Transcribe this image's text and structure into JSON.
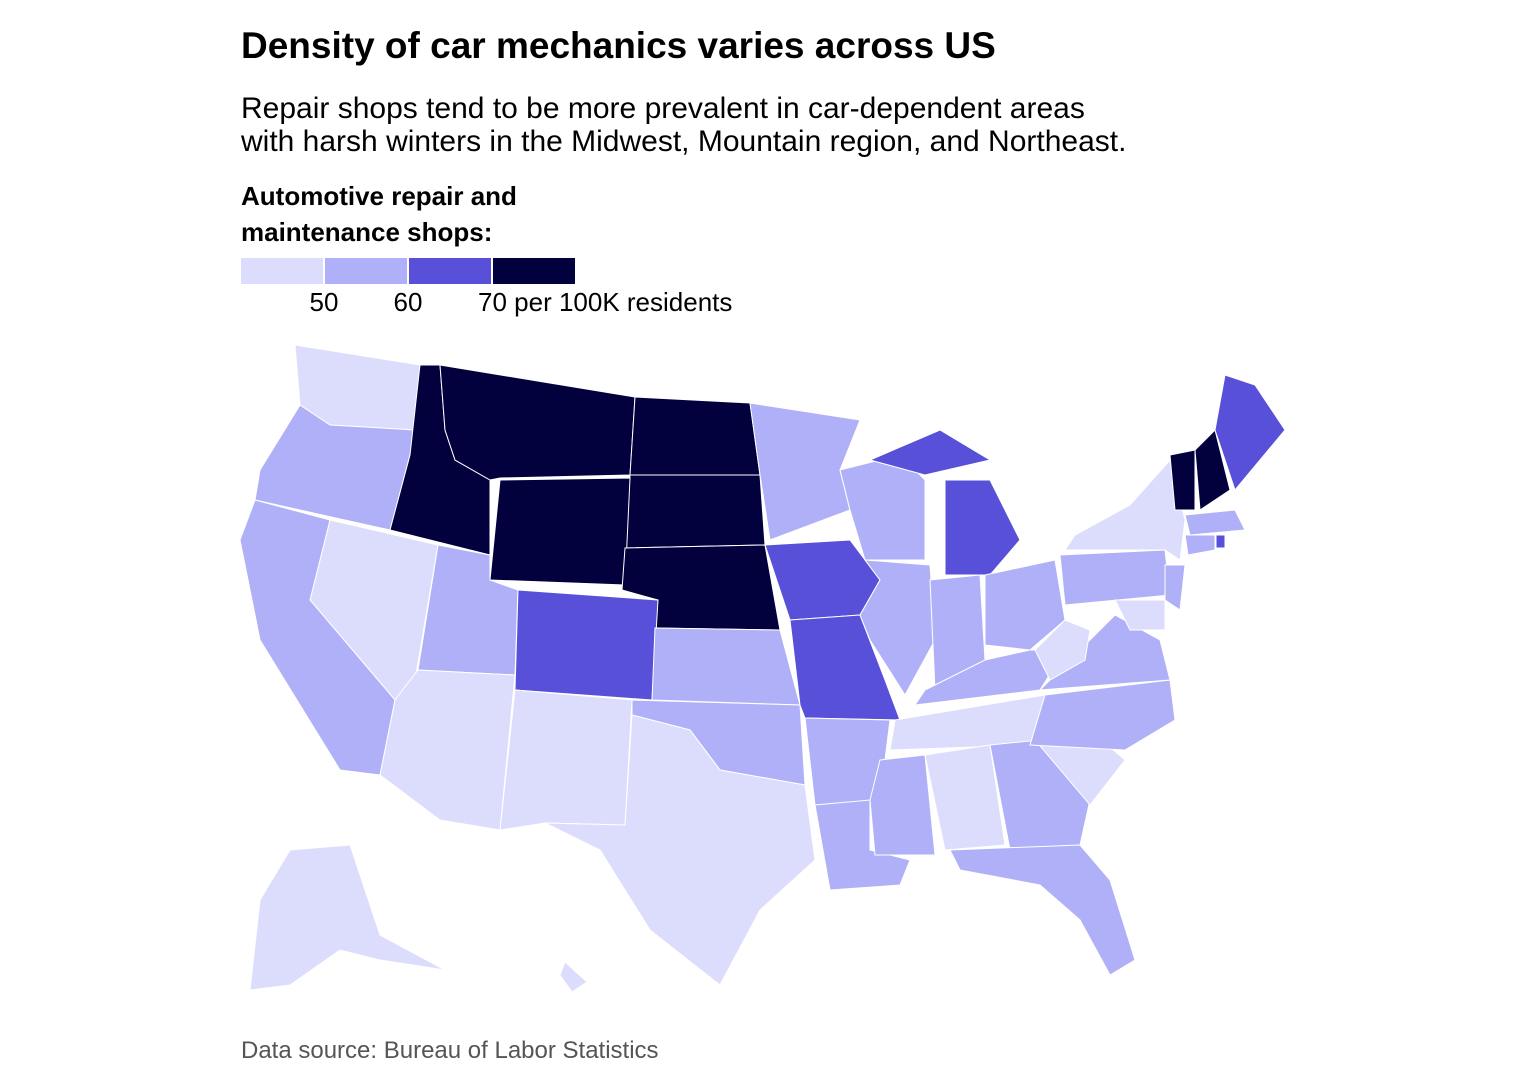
{
  "title": "Density of car mechanics varies across US",
  "subtitle": [
    "Repair shops tend to be more prevalent in car-dependent areas",
    "with harsh winters in the Midwest, Mountain region, and Northeast."
  ],
  "legend": {
    "title": [
      "Automotive repair and",
      "maintenance shops:"
    ],
    "colors": [
      "#dcdcfc",
      "#b0b0f8",
      "#5850d8",
      "#02003d"
    ],
    "ticks": [
      50,
      60,
      {
        "value": 70,
        "label": "70 per 100K residents"
      }
    ]
  },
  "source": "Data source: Bureau of Labor Statistics"
}
